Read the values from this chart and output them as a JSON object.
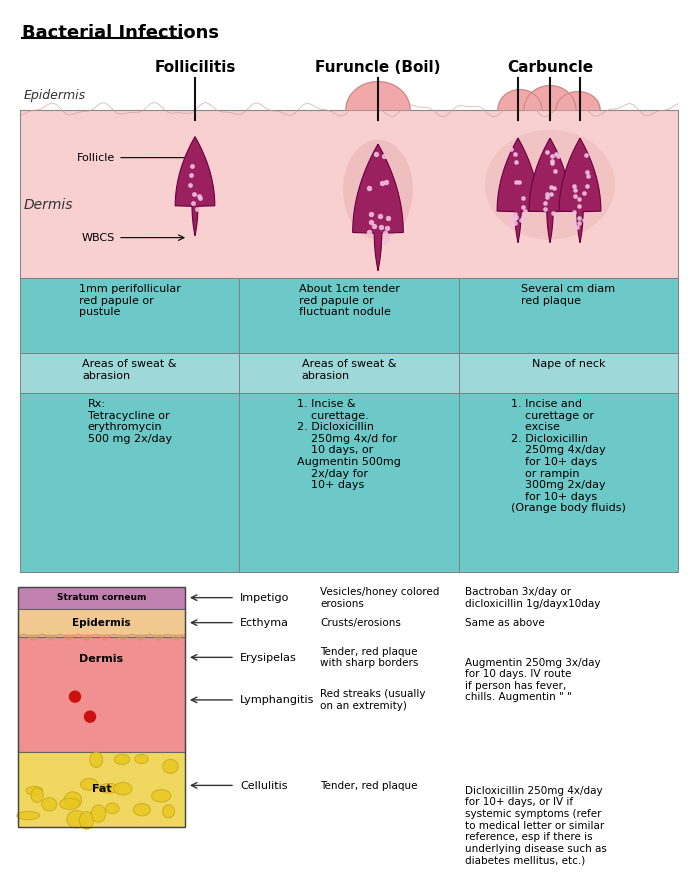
{
  "title": "Bacterial Infections",
  "col_headers": [
    "Follicilitis",
    "Furuncle (Boil)",
    "Carbuncle"
  ],
  "bg_color": "#ffffff",
  "table_bg": "#6dc8c8",
  "table_alt": "#9ed8d8",
  "skin_color": "#f5c8c8",
  "epidermis_label": "Epidermis",
  "dermis_label": "Dermis",
  "follicle_label": "Follicle",
  "wbcs_label": "WBCS",
  "row1": [
    "1mm perifollicular\nred papule or\npustule",
    "About 1cm tender\nred papule or\nfluctuant nodule",
    "Several cm diam\nred plaque"
  ],
  "row2": [
    "Areas of sweat &\nabrasion",
    "Areas of sweat &\nabrasion",
    "Nape of neck"
  ],
  "row3": [
    "Rx:\nTetracycline or\nerythromycin\n500 mg 2x/day",
    "1. Incise &\n    curettage.\n2. Dicloxicillin\n    250mg 4x/d for\n    10 days, or\nAugmentin 500mg\n    2x/day for\n    10+ days",
    "1. Incise and\n    curettage or\n    excise\n2. Dicloxicillin\n    250mg 4x/day\n    for 10+ days\n    or rampin\n    300mg 2x/day\n    for 10+ days\n(Orange body fluids)"
  ],
  "bottom_conditions": [
    "Impetigo",
    "Ecthyma",
    "Erysipelas",
    "Lymphangitis",
    "Cellulitis"
  ],
  "bottom_desc": [
    "Vesicles/honey colored\nerosions",
    "Crusts/erosions",
    "Tender, red plaque\nwith sharp borders",
    "Red streaks (usually\non an extremity)",
    "Tender, red plaque"
  ],
  "bottom_rx": [
    "Bactroban 3x/day or\ndicloxicillin 1g/dayx10day",
    "Same as above",
    "Augmentin 250mg 3x/day\nfor 10 days. IV route\nif person has fever,\nchills. Augmentin \" \"",
    "Dicloxicillin 250mg 4x/day\nfor 10+ days, or IV if\nsystemic symptoms (refer\nto medical letter or similar\nreference, esp if there is\nunderlying disease such as\ndiabetes mellitus, etc.)"
  ],
  "stratum_label": "Stratum corneum",
  "fat_label": "Fat",
  "stratum_color": "#c080b0",
  "epidermis_color": "#f0c890",
  "dermis_color": "#f09090",
  "fat_color": "#f0d860",
  "fat_border": "#c8a820"
}
